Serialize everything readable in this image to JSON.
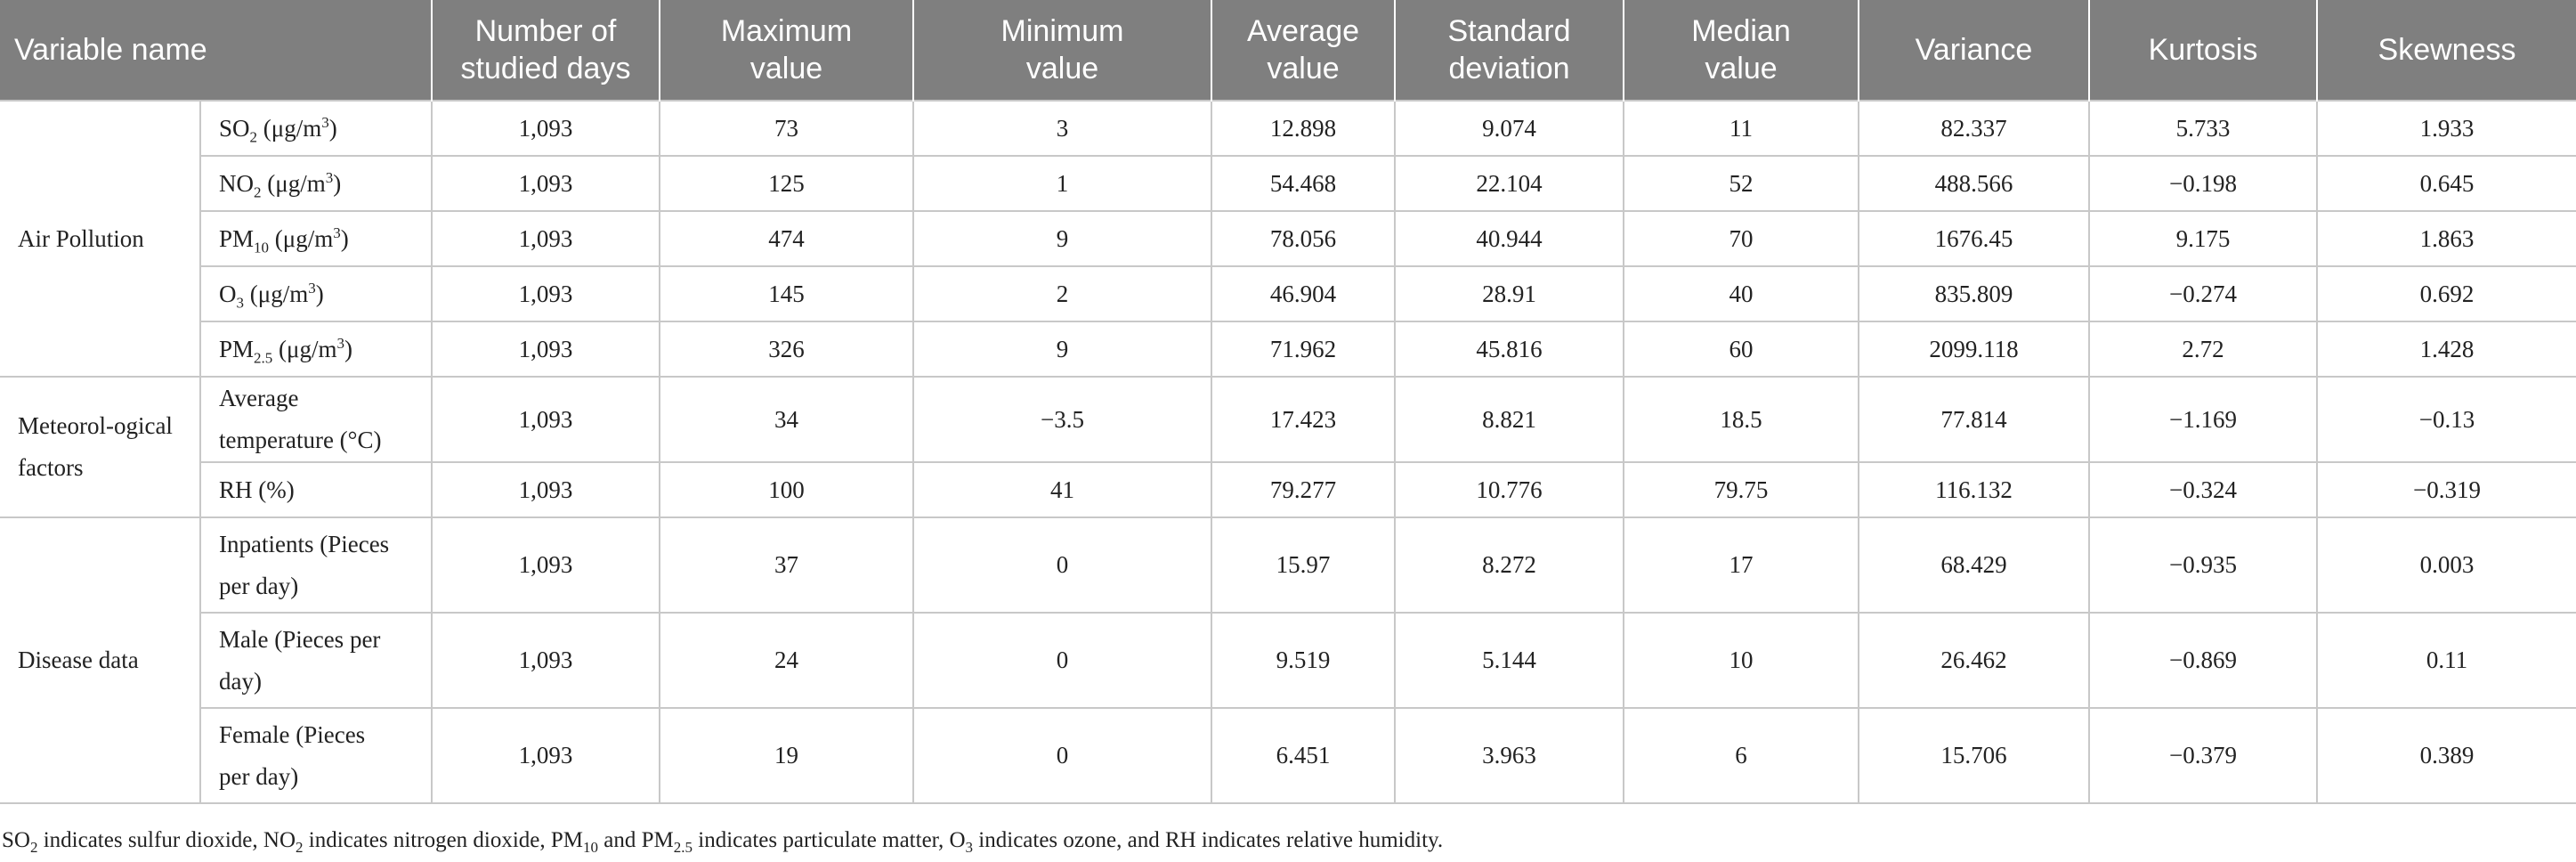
{
  "table": {
    "headers": {
      "variable_name": "Variable name",
      "days_1": "Number of",
      "days_2": "studied days",
      "max_1": "Maximum",
      "max_2": "value",
      "min_1": "Minimum",
      "min_2": "value",
      "avg_1": "Average",
      "avg_2": "value",
      "sd_1": "Standard",
      "sd_2": "deviation",
      "median_1": "Median",
      "median_2": "value",
      "variance": "Variance",
      "kurtosis": "Kurtosis",
      "skewness": "Skewness"
    },
    "groups": {
      "air": "Air Pollution",
      "met_1": "Meteorol-ogical",
      "met_2": "factors",
      "disease": "Disease data"
    },
    "rows": [
      {
        "var": "SO",
        "sub": "2",
        "unit_a": " (μg/m",
        "sup": "3",
        "unit_b": ")",
        "values": [
          "1,093",
          "73",
          "3",
          "12.898",
          "9.074",
          "11",
          "82.337",
          "5.733",
          "1.933"
        ]
      },
      {
        "var": "NO",
        "sub": "2",
        "unit_a": " (μg/m",
        "sup": "3",
        "unit_b": ")",
        "values": [
          "1,093",
          "125",
          "1",
          "54.468",
          "22.104",
          "52",
          "488.566",
          "−0.198",
          "0.645"
        ]
      },
      {
        "var": "PM",
        "sub": "10",
        "unit_a": " (μg/m",
        "sup": "3",
        "unit_b": ")",
        "values": [
          "1,093",
          "474",
          "9",
          "78.056",
          "40.944",
          "70",
          "1676.45",
          "9.175",
          "1.863"
        ]
      },
      {
        "var": "O",
        "sub": "3",
        "unit_a": " (μg/m",
        "sup": "3",
        "unit_b": ")",
        "values": [
          "1,093",
          "145",
          "2",
          "46.904",
          "28.91",
          "40",
          "835.809",
          "−0.274",
          "0.692"
        ]
      },
      {
        "var": "PM",
        "sub": "2.5",
        "unit_a": " (μg/m",
        "sup": "3",
        "unit_b": ")",
        "values": [
          "1,093",
          "326",
          "9",
          "71.962",
          "45.816",
          "60",
          "2099.118",
          "2.72",
          "1.428"
        ]
      },
      {
        "var_1": "Average",
        "var_2": "temperature (°C)",
        "values": [
          "1,093",
          "34",
          "−3.5",
          "17.423",
          "8.821",
          "18.5",
          "77.814",
          "−1.169",
          "−0.13"
        ]
      },
      {
        "var": "RH (%)",
        "values": [
          "1,093",
          "100",
          "41",
          "79.277",
          "10.776",
          "79.75",
          "116.132",
          "−0.324",
          "−0.319"
        ]
      },
      {
        "var_1": "Inpatients (Pieces",
        "var_2": "per day)",
        "values": [
          "1,093",
          "37",
          "0",
          "15.97",
          "8.272",
          "17",
          "68.429",
          "−0.935",
          "0.003"
        ]
      },
      {
        "var_1": "Male (Pieces per",
        "var_2": "day)",
        "values": [
          "1,093",
          "24",
          "0",
          "9.519",
          "5.144",
          "10",
          "26.462",
          "−0.869",
          "0.11"
        ]
      },
      {
        "var_1": "Female (Pieces",
        "var_2": "per day)",
        "values": [
          "1,093",
          "19",
          "0",
          "6.451",
          "3.963",
          "6",
          "15.706",
          "−0.379",
          "0.389"
        ]
      }
    ]
  },
  "footnote": {
    "t1": "SO",
    "s1": "2",
    "t2": " indicates sulfur dioxide, NO",
    "s2": "2",
    "t3": " indicates nitrogen dioxide, PM",
    "s3": "10",
    "t4": " and PM",
    "s4": "2.5",
    "t5": " indicates particulate matter, O",
    "s5": "3",
    "t6": " indicates ozone, and RH indicates relative humidity."
  }
}
